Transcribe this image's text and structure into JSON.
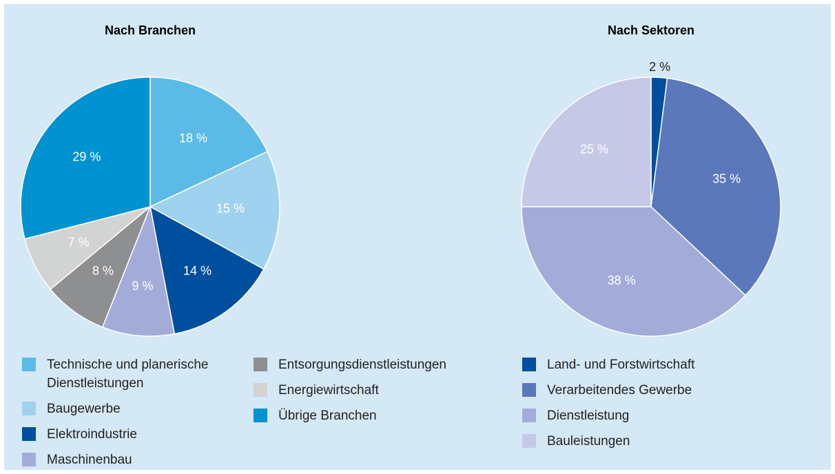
{
  "chart_data": [
    {
      "type": "pie",
      "title": "Nach Branchen",
      "categories": [
        "Technische und planerische Dienstleistungen",
        "Baugewerbe",
        "Elektroindustrie",
        "Maschinenbau",
        "Entsorgungsdienstleistungen",
        "Energiewirtschaft",
        "Übrige Branchen"
      ],
      "values": [
        18,
        15,
        14,
        9,
        8,
        7,
        29
      ],
      "value_labels": [
        "18 %",
        "15 %",
        "14 %",
        "9 %",
        "8 %",
        "7 %",
        "29 %"
      ],
      "colors": [
        "#5bbbe6",
        "#9fd2ee",
        "#004f9f",
        "#a3acd9",
        "#8d8f91",
        "#d2d3d3",
        "#0092d1"
      ]
    },
    {
      "type": "pie",
      "title": "Nach Sektoren",
      "categories": [
        "Land- und Forstwirtschaft",
        "Verarbeitendes Gewerbe",
        "Dienstleistung",
        "Bauleistungen"
      ],
      "values": [
        2,
        35,
        38,
        25
      ],
      "value_labels": [
        "2 %",
        "35 %",
        "38 %",
        "25 %"
      ],
      "colors": [
        "#004f9f",
        "#5b78bb",
        "#a3acd9",
        "#c6c9e6"
      ]
    }
  ]
}
